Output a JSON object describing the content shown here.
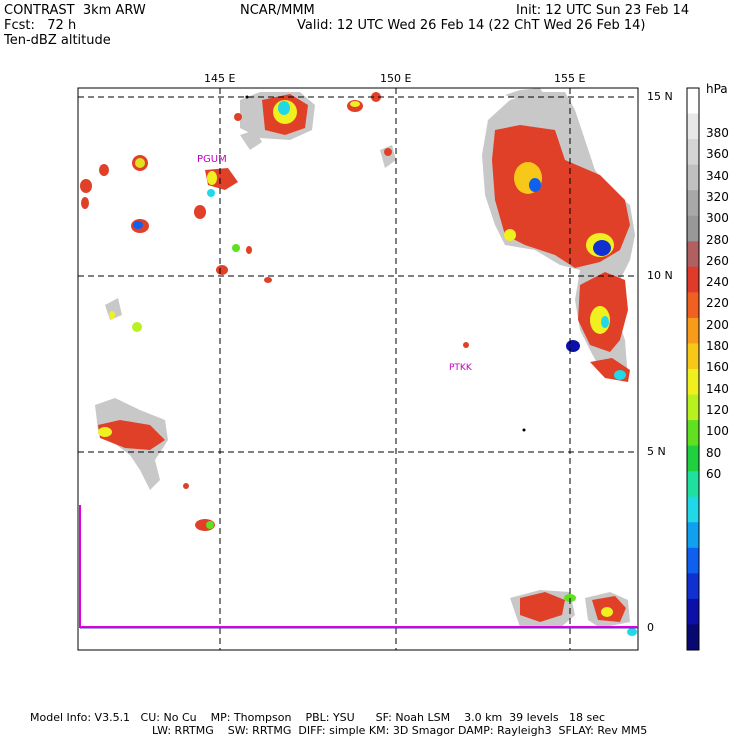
{
  "header": {
    "left_line1": "CONTRAST  3km ARW",
    "left_line2": "Fcst:   72 h",
    "left_line3": "Ten-dBZ altitude",
    "center": "NCAR/MMM",
    "right_line1": "Init: 12 UTC Sun 23 Feb 14",
    "right_line2": "Valid: 12 UTC Wed 26 Feb 14 (22 ChT Wed 26 Feb 14)"
  },
  "map": {
    "lon_labels": [
      "145 E",
      "150 E",
      "155 E"
    ],
    "lat_labels": [
      "15 N",
      "10 N",
      "5 N",
      "0"
    ],
    "stations": [
      "PGUM",
      "PTKK"
    ]
  },
  "colorbar": {
    "unit": "hPa",
    "labels": [
      "380",
      "360",
      "340",
      "320",
      "300",
      "280",
      "260",
      "240",
      "220",
      "200",
      "180",
      "160",
      "140",
      "120",
      "100",
      "80",
      "60"
    ],
    "colors": [
      "#ffffff",
      "#e8e8e8",
      "#d4d4d4",
      "#c0c0c0",
      "#a8a8a8",
      "#989898",
      "#b06060",
      "#e03a2a",
      "#f06020",
      "#f89a1a",
      "#f8c818",
      "#f0f020",
      "#b8f020",
      "#60e020",
      "#20d040",
      "#20e0a0",
      "#20d8e8",
      "#10a0f0",
      "#1060f0",
      "#1030d0",
      "#0c10a8",
      "#080870"
    ]
  },
  "footer": {
    "line1": "Model Info: V3.5.1   CU: No Cu    MP: Thompson    PBL: YSU      SF: Noah LSM    3.0 km  39 levels   18 sec",
    "line2": "LW: RRTMG    SW: RRTMG  DIFF: simple KM: 3D Smagor DAMP: Rayleigh3  SFLAY: Rev MM5"
  }
}
